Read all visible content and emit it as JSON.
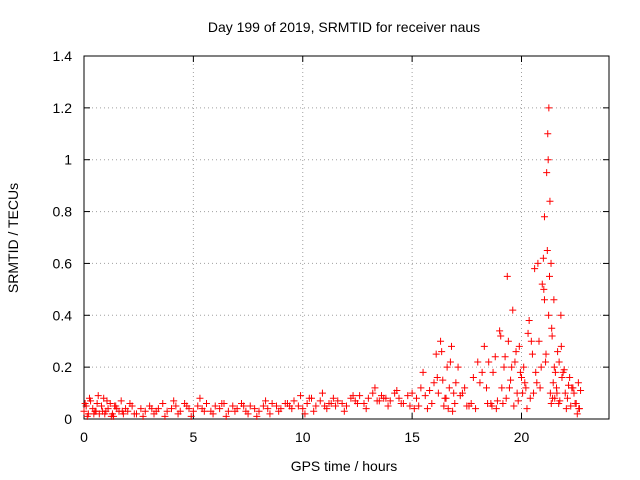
{
  "chart_data": {
    "type": "scatter",
    "title": "Day 199 of 2019, SRMTID for receiver naus",
    "xlabel": "GPS time / hours",
    "ylabel": "SRMTID / TECUs",
    "xlim": [
      0,
      24
    ],
    "ylim": [
      0,
      1.4
    ],
    "xticks": [
      0,
      5,
      10,
      15,
      20
    ],
    "yticks": [
      0,
      0.2,
      0.4,
      0.6,
      0.8,
      1,
      1.2,
      1.4
    ],
    "xtick_labels": [
      "0",
      "5",
      "10",
      "15",
      "20"
    ],
    "ytick_labels": [
      "0",
      "0.2",
      "0.4",
      "0.6",
      "0.8",
      "1",
      "1.2",
      "1.4"
    ],
    "grid": true,
    "marker": "+",
    "marker_color": "#ff0000",
    "series": [
      {
        "name": "SRMTID",
        "x": [
          0.0,
          0.1,
          0.2,
          0.3,
          0.4,
          0.5,
          0.6,
          0.7,
          0.8,
          0.9,
          1.0,
          1.1,
          1.2,
          1.3,
          1.4,
          1.5,
          1.6,
          1.7,
          1.8,
          1.9,
          2.0,
          2.2,
          2.4,
          2.6,
          2.8,
          3.0,
          3.2,
          3.4,
          3.6,
          3.8,
          4.0,
          4.2,
          4.4,
          4.6,
          4.8,
          5.0,
          5.2,
          5.4,
          5.6,
          5.8,
          6.0,
          6.2,
          6.4,
          6.6,
          6.8,
          7.0,
          7.2,
          7.4,
          7.6,
          7.8,
          8.0,
          8.2,
          8.4,
          8.6,
          8.8,
          9.0,
          9.2,
          9.4,
          9.6,
          9.8,
          10.0,
          10.2,
          10.4,
          10.6,
          10.8,
          11.0,
          11.2,
          11.4,
          11.6,
          11.8,
          12.0,
          12.2,
          12.4,
          12.6,
          12.8,
          13.0,
          13.2,
          13.4,
          13.6,
          13.8,
          14.0,
          14.2,
          14.4,
          14.6,
          14.8,
          15.0,
          15.2,
          15.4,
          15.6,
          15.8,
          16.0,
          16.1,
          16.2,
          16.3,
          16.4,
          16.5,
          16.6,
          16.7,
          16.8,
          16.9,
          17.0,
          17.2,
          17.4,
          17.6,
          17.8,
          18.0,
          18.2,
          18.4,
          18.6,
          18.8,
          19.0,
          19.1,
          19.2,
          19.3,
          19.4,
          19.5,
          19.6,
          19.7,
          19.8,
          19.9,
          20.0,
          20.1,
          20.2,
          20.3,
          20.4,
          20.5,
          20.6,
          20.7,
          20.8,
          20.9,
          21.0,
          21.05,
          21.1,
          21.15,
          21.2,
          21.25,
          21.3,
          21.35,
          21.4,
          21.45,
          21.5,
          21.6,
          21.7,
          21.8,
          21.9,
          22.0,
          22.1,
          22.2,
          22.3,
          22.4,
          22.5,
          22.6,
          22.7,
          0.05,
          0.25,
          0.45,
          0.65,
          0.85,
          1.05,
          1.25,
          1.45,
          2.1,
          3.1,
          4.1,
          4.7,
          5.3,
          6.3,
          7.3,
          8.3,
          9.3,
          9.9,
          10.3,
          10.9,
          11.3,
          12.3,
          13.3,
          13.7,
          14.3,
          15.3,
          15.5,
          16.15,
          16.35,
          16.55,
          16.75,
          17.1,
          17.3,
          17.7,
          18.1,
          18.3,
          18.5,
          18.7,
          18.9,
          19.05,
          19.25,
          19.35,
          19.45,
          19.55,
          19.75,
          19.95,
          20.15,
          20.35,
          20.55,
          20.75,
          20.95,
          21.05,
          21.12,
          21.18,
          21.22,
          21.28,
          21.32,
          21.38,
          21.42,
          21.48,
          21.55,
          21.65,
          21.75,
          21.85,
          21.95,
          22.15,
          22.35,
          22.55,
          22.65,
          0.15,
          0.55,
          0.95,
          1.35,
          1.75,
          2.3,
          2.7,
          3.3,
          3.7,
          4.3,
          4.9,
          5.5,
          5.9,
          6.5,
          6.9,
          7.5,
          7.9,
          8.5,
          8.9,
          9.5,
          10.1,
          10.5,
          11.1,
          11.5,
          11.9,
          12.5,
          12.9,
          13.5,
          13.9,
          14.5,
          14.9,
          15.1,
          15.7,
          15.9,
          16.45,
          16.65,
          16.85,
          16.95,
          17.5,
          17.9,
          18.45,
          18.65,
          18.85,
          19.15,
          19.65,
          19.85,
          20.05,
          20.25,
          20.45,
          20.65,
          20.85,
          21.02,
          21.24,
          21.36,
          21.52,
          21.62,
          21.72,
          21.82,
          22.05,
          22.25,
          22.45,
          22.62
        ],
        "y": [
          0.03,
          0.05,
          0.02,
          0.07,
          0.04,
          0.03,
          0.06,
          0.02,
          0.05,
          0.08,
          0.03,
          0.04,
          0.06,
          0.02,
          0.05,
          0.04,
          0.03,
          0.07,
          0.02,
          0.04,
          0.03,
          0.05,
          0.02,
          0.04,
          0.03,
          0.05,
          0.02,
          0.04,
          0.06,
          0.03,
          0.04,
          0.05,
          0.03,
          0.06,
          0.04,
          0.03,
          0.05,
          0.04,
          0.06,
          0.03,
          0.05,
          0.04,
          0.06,
          0.03,
          0.05,
          0.04,
          0.06,
          0.03,
          0.05,
          0.04,
          0.03,
          0.05,
          0.04,
          0.06,
          0.05,
          0.04,
          0.06,
          0.05,
          0.07,
          0.05,
          0.04,
          0.06,
          0.08,
          0.05,
          0.07,
          0.05,
          0.06,
          0.08,
          0.07,
          0.06,
          0.05,
          0.08,
          0.07,
          0.09,
          0.06,
          0.08,
          0.1,
          0.07,
          0.09,
          0.08,
          0.07,
          0.1,
          0.08,
          0.06,
          0.09,
          0.1,
          0.08,
          0.12,
          0.09,
          0.11,
          0.14,
          0.25,
          0.1,
          0.3,
          0.15,
          0.08,
          0.2,
          0.12,
          0.28,
          0.1,
          0.14,
          0.09,
          0.12,
          0.05,
          0.16,
          0.22,
          0.18,
          0.12,
          0.06,
          0.24,
          0.34,
          0.12,
          0.2,
          0.08,
          0.3,
          0.15,
          0.42,
          0.22,
          0.1,
          0.28,
          0.16,
          0.2,
          0.12,
          0.33,
          0.08,
          0.25,
          0.58,
          0.14,
          0.3,
          0.2,
          0.62,
          0.46,
          0.22,
          0.95,
          1.1,
          1.2,
          0.84,
          0.6,
          0.32,
          0.14,
          0.2,
          0.12,
          0.06,
          0.4,
          0.18,
          0.1,
          0.08,
          0.16,
          0.12,
          0.1,
          0.06,
          0.14,
          0.11,
          0.06,
          0.08,
          0.02,
          0.09,
          0.03,
          0.07,
          0.01,
          0.05,
          0.06,
          0.04,
          0.07,
          0.05,
          0.08,
          0.06,
          0.05,
          0.07,
          0.06,
          0.09,
          0.08,
          0.1,
          0.06,
          0.09,
          0.12,
          0.08,
          0.11,
          0.05,
          0.18,
          0.16,
          0.26,
          0.08,
          0.22,
          0.2,
          0.1,
          0.06,
          0.14,
          0.28,
          0.22,
          0.18,
          0.07,
          0.32,
          0.24,
          0.55,
          0.12,
          0.2,
          0.26,
          0.18,
          0.14,
          0.38,
          0.1,
          0.6,
          0.52,
          0.78,
          0.25,
          0.65,
          1.0,
          0.55,
          0.1,
          0.35,
          0.08,
          0.46,
          0.18,
          0.26,
          0.07,
          0.16,
          0.19,
          0.13,
          0.12,
          0.02,
          0.04,
          0.01,
          0.03,
          0.02,
          0.01,
          0.03,
          0.02,
          0.01,
          0.03,
          0.01,
          0.02,
          0.01,
          0.03,
          0.02,
          0.01,
          0.03,
          0.02,
          0.01,
          0.02,
          0.03,
          0.04,
          0.02,
          0.03,
          0.04,
          0.05,
          0.03,
          0.06,
          0.04,
          0.07,
          0.05,
          0.06,
          0.05,
          0.04,
          0.04,
          0.06,
          0.05,
          0.04,
          0.03,
          0.06,
          0.05,
          0.04,
          0.06,
          0.05,
          0.04,
          0.06,
          0.05,
          0.07,
          0.1,
          0.04,
          0.3,
          0.18,
          0.12,
          0.5,
          0.4,
          0.06,
          0.08,
          0.1,
          0.22,
          0.28,
          0.04,
          0.05,
          0.06,
          0.04
        ]
      }
    ]
  }
}
